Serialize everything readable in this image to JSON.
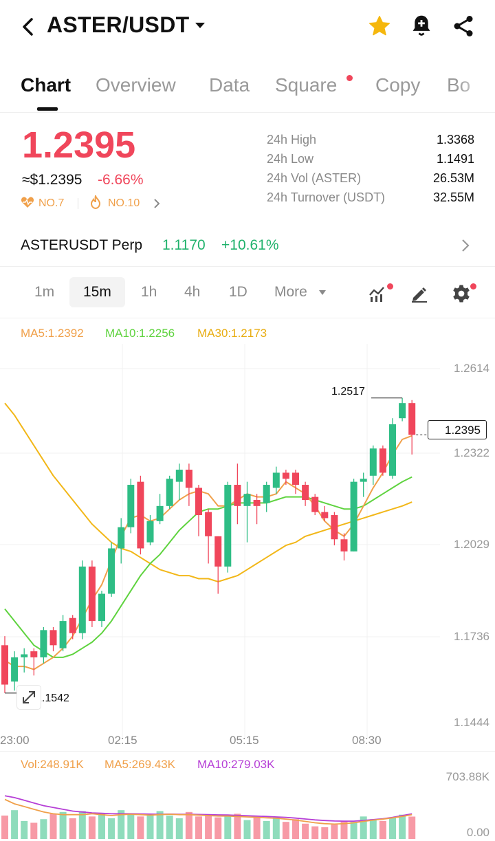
{
  "header": {
    "title": "ASTER/USDT"
  },
  "tabs": [
    {
      "label": "Chart"
    },
    {
      "label": "Overview"
    },
    {
      "label": "Data"
    },
    {
      "label": "Square"
    },
    {
      "label": "Copy"
    },
    {
      "label": "Bo"
    }
  ],
  "ticker": {
    "price": "1.2395",
    "usd_price": "≈$1.2395",
    "change": "-6.66%",
    "rank_hot": "NO.7",
    "rank_trend": "NO.10"
  },
  "stats": [
    {
      "label": "24h High",
      "value": "1.3368"
    },
    {
      "label": "24h Low",
      "value": "1.1491"
    },
    {
      "label": "24h Vol (ASTER)",
      "value": "26.53M"
    },
    {
      "label": "24h Turnover (USDT)",
      "value": "32.55M"
    }
  ],
  "perp": {
    "name": "ASTERUSDT Perp",
    "price": "1.1170",
    "change": "+10.61%"
  },
  "timeframes": [
    "1m",
    "15m",
    "1h",
    "4h",
    "1D"
  ],
  "more_label": "More",
  "ma_legend": {
    "ma5": "MA5:1.2392",
    "ma10": "MA10:1.2256",
    "ma30": "MA30:1.2173"
  },
  "vol_legend": {
    "vol": "Vol:248.91K",
    "ma5": "MA5:269.43K",
    "ma10": "MA10:279.03K"
  },
  "price_axis": [
    "1.2614",
    "1.2322",
    "1.2029",
    "1.1736",
    "1.1444"
  ],
  "time_axis": [
    "23:00",
    "02:15",
    "05:15",
    "08:30"
  ],
  "vol_axis": [
    "703.88K",
    "0.00"
  ],
  "chart_labels": {
    "high_marker": "1.2517",
    "low_marker": "1.1542",
    "last_price": "1.2395"
  },
  "colors": {
    "up": "#2ebd85",
    "down": "#f0465b",
    "ma5": "#f0a04a",
    "ma10": "#5fd33f",
    "ma30": "#f2b718",
    "vol_ma10": "#b63fd6"
  },
  "chart_data": {
    "type": "candlestick",
    "interval": "15m",
    "ylim": [
      1.1444,
      1.2614
    ],
    "candles": [
      {
        "o": 1.17,
        "h": 1.173,
        "c": 1.157,
        "l": 1.1542
      },
      {
        "o": 1.158,
        "h": 1.168,
        "c": 1.166,
        "l": 1.155
      },
      {
        "o": 1.166,
        "h": 1.169,
        "c": 1.167,
        "l": 1.161
      },
      {
        "o": 1.168,
        "h": 1.169,
        "c": 1.166,
        "l": 1.16
      },
      {
        "o": 1.166,
        "h": 1.176,
        "c": 1.175,
        "l": 1.164
      },
      {
        "o": 1.175,
        "h": 1.176,
        "c": 1.17,
        "l": 1.168
      },
      {
        "o": 1.169,
        "h": 1.18,
        "c": 1.178,
        "l": 1.168
      },
      {
        "o": 1.179,
        "h": 1.18,
        "c": 1.174,
        "l": 1.172
      },
      {
        "o": 1.174,
        "h": 1.198,
        "c": 1.196,
        "l": 1.172
      },
      {
        "o": 1.196,
        "h": 1.198,
        "c": 1.178,
        "l": 1.176
      },
      {
        "o": 1.178,
        "h": 1.188,
        "c": 1.187,
        "l": 1.176
      },
      {
        "o": 1.187,
        "h": 1.204,
        "c": 1.202,
        "l": 1.186
      },
      {
        "o": 1.202,
        "h": 1.212,
        "c": 1.209,
        "l": 1.197
      },
      {
        "o": 1.209,
        "h": 1.225,
        "c": 1.223,
        "l": 1.207
      },
      {
        "o": 1.224,
        "h": 1.226,
        "c": 1.202,
        "l": 1.2
      },
      {
        "o": 1.204,
        "h": 1.213,
        "c": 1.211,
        "l": 1.203
      },
      {
        "o": 1.211,
        "h": 1.22,
        "c": 1.216,
        "l": 1.21
      },
      {
        "o": 1.216,
        "h": 1.226,
        "c": 1.225,
        "l": 1.215
      },
      {
        "o": 1.224,
        "h": 1.23,
        "c": 1.228,
        "l": 1.218
      },
      {
        "o": 1.228,
        "h": 1.23,
        "c": 1.222,
        "l": 1.216
      },
      {
        "o": 1.222,
        "h": 1.223,
        "c": 1.213,
        "l": 1.206
      },
      {
        "o": 1.214,
        "h": 1.215,
        "c": 1.206,
        "l": 1.197
      },
      {
        "o": 1.206,
        "h": 1.206,
        "c": 1.196,
        "l": 1.187
      },
      {
        "o": 1.196,
        "h": 1.224,
        "c": 1.223,
        "l": 1.194
      },
      {
        "o": 1.223,
        "h": 1.23,
        "c": 1.216,
        "l": 1.21
      },
      {
        "o": 1.216,
        "h": 1.224,
        "c": 1.22,
        "l": 1.204
      },
      {
        "o": 1.218,
        "h": 1.22,
        "c": 1.216,
        "l": 1.21
      },
      {
        "o": 1.217,
        "h": 1.224,
        "c": 1.223,
        "l": 1.214
      },
      {
        "o": 1.222,
        "h": 1.229,
        "c": 1.227,
        "l": 1.22
      },
      {
        "o": 1.227,
        "h": 1.228,
        "c": 1.225,
        "l": 1.223
      },
      {
        "o": 1.227,
        "h": 1.228,
        "c": 1.223,
        "l": 1.22
      },
      {
        "o": 1.223,
        "h": 1.224,
        "c": 1.218,
        "l": 1.216
      },
      {
        "o": 1.219,
        "h": 1.22,
        "c": 1.214,
        "l": 1.213
      },
      {
        "o": 1.214,
        "h": 1.216,
        "c": 1.212,
        "l": 1.211
      },
      {
        "o": 1.213,
        "h": 1.214,
        "c": 1.205,
        "l": 1.203
      },
      {
        "o": 1.205,
        "h": 1.207,
        "c": 1.201,
        "l": 1.198
      },
      {
        "o": 1.201,
        "h": 1.225,
        "c": 1.224,
        "l": 1.201
      },
      {
        "o": 1.224,
        "h": 1.227,
        "c": 1.225,
        "l": 1.219
      },
      {
        "o": 1.226,
        "h": 1.236,
        "c": 1.235,
        "l": 1.223
      },
      {
        "o": 1.235,
        "h": 1.236,
        "c": 1.227,
        "l": 1.226
      },
      {
        "o": 1.226,
        "h": 1.245,
        "c": 1.243,
        "l": 1.225
      },
      {
        "o": 1.245,
        "h": 1.2517,
        "c": 1.25,
        "l": 1.244
      },
      {
        "o": 1.25,
        "h": 1.251,
        "c": 1.2395,
        "l": 1.233
      }
    ],
    "ma5": [
      1.165,
      1.163,
      1.163,
      1.162,
      1.164,
      1.166,
      1.169,
      1.173,
      1.179,
      1.185,
      1.19,
      1.198,
      1.206,
      1.212,
      1.213,
      1.211,
      1.212,
      1.215,
      1.218,
      1.22,
      1.221,
      1.22,
      1.216,
      1.216,
      1.218,
      1.22,
      1.219,
      1.219,
      1.22,
      1.224,
      1.222,
      1.22,
      1.216,
      1.211,
      1.208,
      1.206,
      1.21,
      1.216,
      1.222,
      1.227,
      1.233,
      1.238,
      1.2392
    ],
    "ma10": [
      1.182,
      1.178,
      1.174,
      1.17,
      1.168,
      1.166,
      1.166,
      1.167,
      1.169,
      1.171,
      1.174,
      1.178,
      1.183,
      1.188,
      1.193,
      1.197,
      1.2,
      1.204,
      1.208,
      1.211,
      1.214,
      1.215,
      1.215,
      1.216,
      1.217,
      1.217,
      1.217,
      1.217,
      1.218,
      1.219,
      1.219,
      1.219,
      1.218,
      1.217,
      1.216,
      1.215,
      1.215,
      1.216,
      1.218,
      1.22,
      1.222,
      1.224,
      1.2256
    ],
    "ma30": [
      1.25,
      1.246,
      1.241,
      1.236,
      1.231,
      1.226,
      1.222,
      1.218,
      1.214,
      1.21,
      1.207,
      1.204,
      1.202,
      1.201,
      1.199,
      1.197,
      1.195,
      1.194,
      1.193,
      1.193,
      1.192,
      1.192,
      1.191,
      1.192,
      1.193,
      1.195,
      1.197,
      1.199,
      1.201,
      1.203,
      1.204,
      1.206,
      1.207,
      1.208,
      1.209,
      1.21,
      1.211,
      1.212,
      1.213,
      1.214,
      1.215,
      1.216,
      1.2173
    ],
    "volume_max": 703880,
    "volumes": [
      260,
      320,
      200,
      180,
      220,
      280,
      300,
      230,
      310,
      250,
      290,
      230,
      320,
      270,
      250,
      280,
      310,
      260,
      230,
      300,
      250,
      260,
      240,
      270,
      280,
      210,
      250,
      200,
      240,
      190,
      220,
      170,
      140,
      130,
      160,
      200,
      190,
      250,
      220,
      200,
      240,
      270,
      248.91
    ],
    "vol_ma5": [
      440,
      390,
      360,
      330,
      300,
      280,
      270,
      270,
      270,
      280,
      270,
      260,
      270,
      275,
      270,
      265,
      270,
      275,
      270,
      270,
      265,
      260,
      255,
      255,
      250,
      245,
      240,
      235,
      230,
      220,
      210,
      195,
      180,
      170,
      165,
      170,
      180,
      195,
      210,
      220,
      235,
      250,
      269.43
    ],
    "vol_ma10": [
      480,
      460,
      430,
      400,
      370,
      350,
      330,
      310,
      300,
      290,
      285,
      280,
      280,
      280,
      278,
      276,
      275,
      276,
      275,
      274,
      272,
      270,
      268,
      266,
      262,
      258,
      254,
      250,
      245,
      240,
      232,
      222,
      212,
      205,
      200,
      198,
      198,
      205,
      215,
      225,
      240,
      260,
      279.03
    ]
  }
}
